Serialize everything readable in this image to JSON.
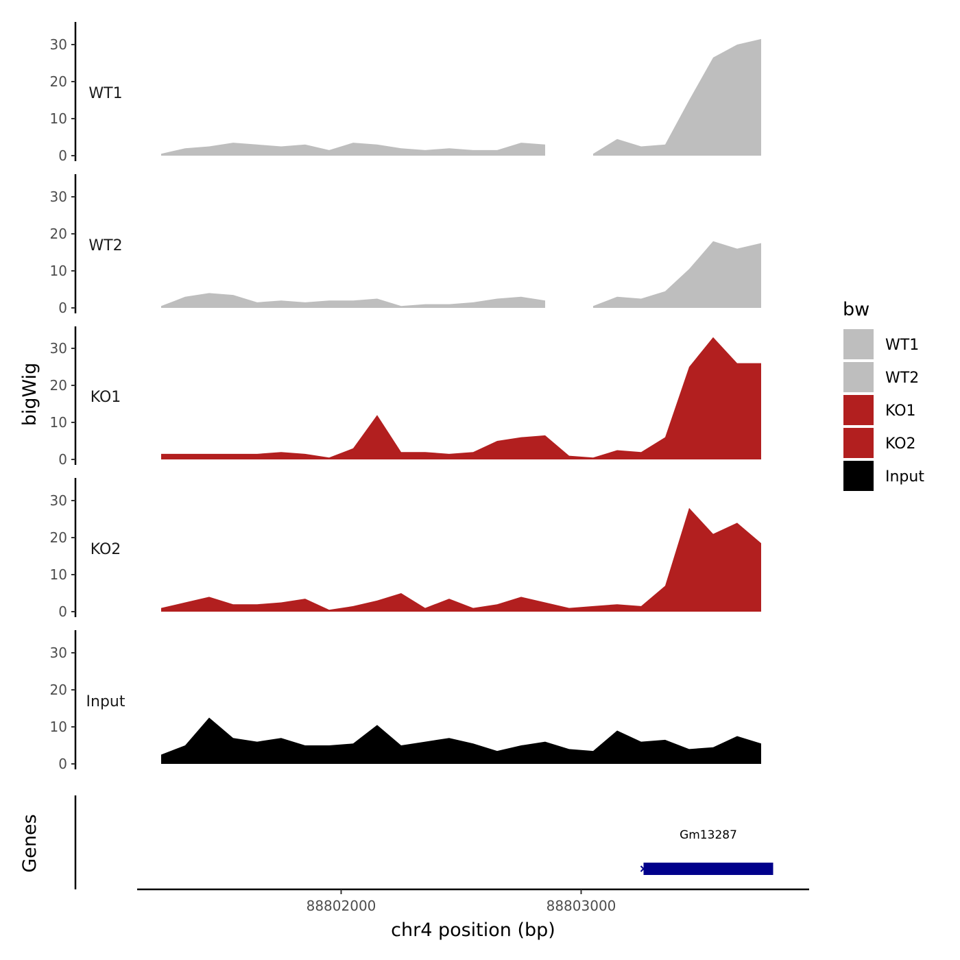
{
  "chart_data": {
    "type": "area",
    "ylabel": "bigWig",
    "xlabel": "chr4 position (bp)",
    "genes_track_label": "Genes",
    "xlim": [
      88801150,
      88803950
    ],
    "ylim": [
      0,
      36
    ],
    "y_ticks": [
      0,
      10,
      20,
      30
    ],
    "x_ticks": [
      88802000,
      88803000
    ],
    "x_tick_labels": [
      "88802000",
      "88803000"
    ],
    "x_positions": [
      88801250,
      88801350,
      88801450,
      88801550,
      88801650,
      88801750,
      88801850,
      88801950,
      88802050,
      88802150,
      88802250,
      88802350,
      88802450,
      88802550,
      88802650,
      88802750,
      88802850,
      88802950,
      88803050,
      88803150,
      88803250,
      88803350,
      88803450,
      88803550,
      88803650,
      88803750
    ],
    "series": [
      {
        "name": "WT1",
        "color": "#BEBEBE",
        "values": [
          0.5,
          2,
          2.5,
          3.5,
          3,
          2.5,
          3,
          1.5,
          3.5,
          3,
          2,
          1.5,
          2,
          1.5,
          1.5,
          3.5,
          3,
          null,
          0.5,
          4.5,
          2.5,
          3,
          15,
          26.5,
          30,
          31.5
        ]
      },
      {
        "name": "WT2",
        "color": "#BEBEBE",
        "values": [
          0.5,
          3,
          4,
          3.5,
          1.5,
          2,
          1.5,
          2,
          2,
          2.5,
          0.5,
          1,
          1,
          1.5,
          2.5,
          3,
          2,
          null,
          0.5,
          3,
          2.5,
          4.5,
          10.5,
          18,
          16,
          17.5
        ]
      },
      {
        "name": "KO1",
        "color": "#B21F1F",
        "values": [
          1.5,
          1.5,
          1.5,
          1.5,
          1.5,
          2,
          1.5,
          0.5,
          3,
          12,
          2,
          2,
          1.5,
          2,
          5,
          6,
          6.5,
          1,
          0.5,
          2.5,
          2,
          6,
          25,
          33,
          26,
          26
        ]
      },
      {
        "name": "KO2",
        "color": "#B21F1F",
        "values": [
          1,
          2.5,
          4,
          2,
          2,
          2.5,
          3.5,
          0.5,
          1.5,
          3,
          5,
          1,
          3.5,
          1,
          2,
          4,
          2.5,
          1,
          1.5,
          2,
          1.5,
          7,
          28,
          21,
          24,
          18.5
        ]
      },
      {
        "name": "Input",
        "color": "#000000",
        "values": [
          2.5,
          5,
          12.5,
          7,
          6,
          7,
          5,
          5,
          5.5,
          10.5,
          5,
          6,
          7,
          5.5,
          3.5,
          5,
          6,
          4,
          3.5,
          9,
          6,
          6.5,
          4,
          4.5,
          7.5,
          5.5
        ]
      }
    ],
    "genes": [
      {
        "name": "Gm13287",
        "start": 88803260,
        "end": 88803800,
        "color": "#00008B"
      }
    ],
    "legend": {
      "title": "bw",
      "position": "right",
      "items": [
        {
          "label": "WT1",
          "color": "#BEBEBE"
        },
        {
          "label": "WT2",
          "color": "#BEBEBE"
        },
        {
          "label": "KO1",
          "color": "#B21F1F"
        },
        {
          "label": "KO2",
          "color": "#B21F1F"
        },
        {
          "label": "Input",
          "color": "#000000"
        }
      ]
    }
  }
}
